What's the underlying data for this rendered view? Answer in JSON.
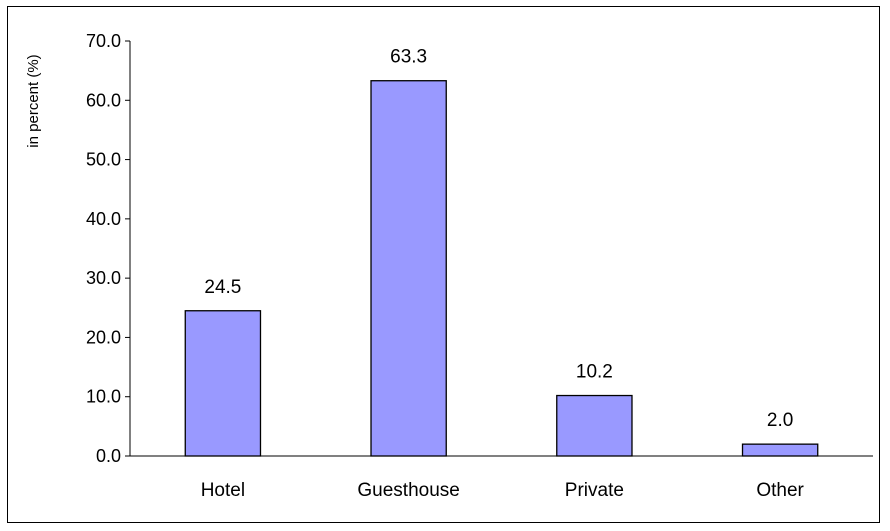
{
  "chart_data": {
    "type": "bar",
    "title": "",
    "xlabel": "",
    "ylabel": "in percent (%)",
    "categories": [
      "Hotel",
      "Guesthouse",
      "Private",
      "Other"
    ],
    "values": [
      24.5,
      63.3,
      10.2,
      2.0
    ],
    "value_labels": [
      "24.5",
      "63.3",
      "10.2",
      "2.0"
    ],
    "ylim": [
      0,
      70
    ],
    "y_ticks": [
      0,
      10,
      20,
      30,
      40,
      50,
      60,
      70
    ],
    "y_tick_labels": [
      "0.0",
      "10.0",
      "20.0",
      "30.0",
      "40.0",
      "50.0",
      "60.0",
      "70.0"
    ],
    "grid": false,
    "legend": "none",
    "bar_color": "#9999ff",
    "bar_edge_color": "#000000"
  }
}
